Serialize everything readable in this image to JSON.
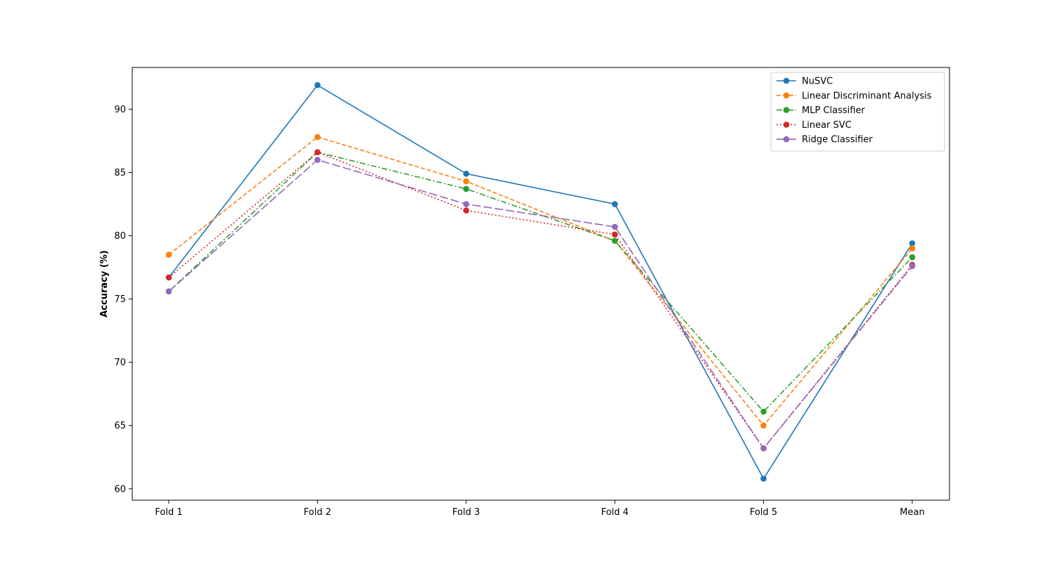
{
  "chart_data": {
    "type": "line",
    "title": "",
    "xlabel": "",
    "ylabel": "Accuracy (%)",
    "categories": [
      "Fold 1",
      "Fold 2",
      "Fold 3",
      "Fold 4",
      "Fold 5",
      "Mean"
    ],
    "ylim": [
      59.1,
      93.3
    ],
    "yticks": [
      60,
      65,
      70,
      75,
      80,
      85,
      90
    ],
    "grid": false,
    "legend_position": "top-right",
    "series": [
      {
        "name": "NuSVC",
        "color": "#1f77b4",
        "dash": "solid",
        "values": [
          76.7,
          91.9,
          84.9,
          82.5,
          60.8,
          79.4
        ]
      },
      {
        "name": "Linear Discriminant Analysis",
        "color": "#ff7f0e",
        "dash": "dashed",
        "values": [
          78.5,
          87.8,
          84.3,
          79.6,
          65.0,
          79.0
        ]
      },
      {
        "name": "MLP Classifier",
        "color": "#2ca02c",
        "dash": "dashdot",
        "values": [
          75.6,
          86.6,
          83.7,
          79.6,
          66.1,
          78.3
        ]
      },
      {
        "name": "Linear SVC",
        "color": "#d62728",
        "dash": "dotted",
        "values": [
          76.7,
          86.6,
          82.0,
          80.1,
          63.2,
          77.7
        ]
      },
      {
        "name": "Ridge Classifier",
        "color": "#9467bd",
        "dash": "longdash",
        "values": [
          75.6,
          86.0,
          82.5,
          80.7,
          63.2,
          77.6
        ]
      }
    ]
  }
}
